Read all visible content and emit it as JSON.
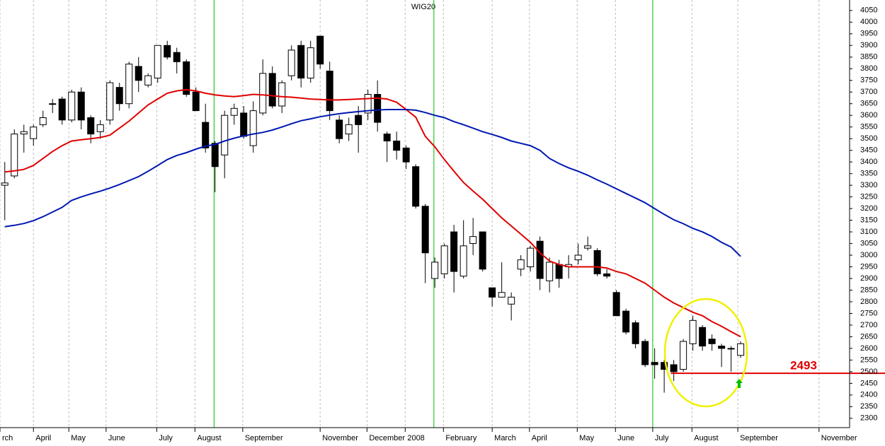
{
  "chart_data": {
    "type": "candlestick",
    "title": "WIG20",
    "open": [
      3300,
      3340,
      3520,
      3500,
      3560,
      3650,
      3670,
      3580,
      3700,
      3590,
      3530,
      3580,
      3720,
      3650,
      3810,
      3730,
      3760,
      3900,
      3870,
      3830,
      3700,
      3570,
      3480,
      3430,
      3600,
      3610,
      3470,
      3610,
      3780,
      3640,
      3770,
      3900,
      3760,
      3940,
      3790,
      3580,
      3520,
      3600,
      3610,
      3690,
      3520,
      3490,
      3460,
      3380,
      3210,
      2900,
      2920,
      3100,
      2910,
      3050,
      3100,
      2860,
      2820,
      2790,
      2940,
      2950,
      3060,
      2890,
      2960,
      2950,
      2980,
      3030,
      3020,
      2920,
      2840,
      2760,
      2710,
      2630,
      2540,
      2540,
      2530,
      2510,
      2620,
      2690,
      2640,
      2610,
      2600,
      2570
    ],
    "high": [
      3400,
      3540,
      3560,
      3560,
      3620,
      3670,
      3680,
      3710,
      3720,
      3600,
      3580,
      3750,
      3740,
      3830,
      3850,
      3780,
      3900,
      3920,
      3890,
      3840,
      3720,
      3650,
      3490,
      3620,
      3650,
      3640,
      3660,
      3840,
      3810,
      3750,
      3900,
      3920,
      3920,
      3940,
      3830,
      3600,
      3590,
      3640,
      3710,
      3750,
      3530,
      3530,
      3470,
      3390,
      3220,
      2990,
      3050,
      3130,
      3150,
      3160,
      3100,
      2860,
      2970,
      2840,
      3000,
      3040,
      3080,
      2990,
      2980,
      3000,
      3050,
      3080,
      3030,
      2940,
      2850,
      2770,
      2720,
      2640,
      2600,
      2550,
      2550,
      2640,
      2740,
      2700,
      2660,
      2620,
      2610,
      2630
    ],
    "low": [
      3150,
      3330,
      3440,
      3470,
      3550,
      3610,
      3560,
      3570,
      3540,
      3480,
      3500,
      3560,
      3620,
      3630,
      3700,
      3720,
      3740,
      3840,
      3780,
      3680,
      3620,
      3440,
      3270,
      3330,
      3560,
      3500,
      3440,
      3600,
      3630,
      3610,
      3750,
      3720,
      3740,
      3800,
      3580,
      3480,
      3490,
      3440,
      3580,
      3530,
      3400,
      3410,
      3370,
      3200,
      2880,
      2860,
      2900,
      2840,
      2900,
      3000,
      2930,
      2780,
      2820,
      2720,
      2910,
      2930,
      2850,
      2840,
      2860,
      2900,
      2960,
      3020,
      2910,
      2900,
      2740,
      2660,
      2600,
      2520,
      2470,
      2410,
      2460,
      2500,
      2590,
      2590,
      2590,
      2520,
      2500,
      2560
    ],
    "close": [
      3310,
      3520,
      3530,
      3550,
      3590,
      3650,
      3580,
      3700,
      3580,
      3520,
      3560,
      3740,
      3650,
      3820,
      3750,
      3770,
      3900,
      3850,
      3830,
      3690,
      3620,
      3460,
      3380,
      3600,
      3630,
      3510,
      3620,
      3780,
      3640,
      3740,
      3880,
      3760,
      3890,
      3820,
      3620,
      3500,
      3560,
      3560,
      3690,
      3570,
      3490,
      3450,
      3400,
      3210,
      3010,
      2970,
      3040,
      2930,
      3040,
      3080,
      2940,
      2820,
      2840,
      2820,
      2980,
      3030,
      2900,
      2970,
      2900,
      2960,
      3000,
      3040,
      2920,
      2910,
      2740,
      2670,
      2620,
      2530,
      2530,
      2510,
      2500,
      2630,
      2720,
      2610,
      2620,
      2600,
      2600,
      2620
    ],
    "overlays": [
      {
        "color": "#e00000",
        "values": [
          3357,
          3362,
          3368,
          3385,
          3415,
          3445,
          3470,
          3490,
          3495,
          3500,
          3505,
          3515,
          3545,
          3575,
          3610,
          3645,
          3670,
          3695,
          3705,
          3710,
          3705,
          3695,
          3688,
          3683,
          3680,
          3685,
          3690,
          3688,
          3684,
          3680,
          3678,
          3674,
          3670,
          3668,
          3666,
          3666,
          3668,
          3670,
          3672,
          3674,
          3670,
          3656,
          3625,
          3592,
          3510,
          3465,
          3410,
          3360,
          3312,
          3275,
          3240,
          3200,
          3160,
          3125,
          3090,
          3055,
          3010,
          2975,
          2960,
          2950,
          2950,
          2950,
          2950,
          2945,
          2930,
          2920,
          2900,
          2880,
          2850,
          2820,
          2795,
          2775,
          2755,
          2740,
          2715,
          2695,
          2672,
          2650
        ]
      },
      {
        "color": "#0018b0",
        "values": [
          3122,
          3128,
          3136,
          3148,
          3165,
          3185,
          3205,
          3235,
          3250,
          3263,
          3275,
          3288,
          3303,
          3320,
          3337,
          3360,
          3385,
          3410,
          3428,
          3440,
          3455,
          3468,
          3475,
          3490,
          3502,
          3512,
          3520,
          3527,
          3537,
          3550,
          3564,
          3577,
          3585,
          3594,
          3601,
          3607,
          3612,
          3616,
          3620,
          3623,
          3625,
          3625,
          3625,
          3622,
          3612,
          3600,
          3590,
          3573,
          3560,
          3545,
          3530,
          3518,
          3505,
          3490,
          3480,
          3470,
          3450,
          3415,
          3393,
          3375,
          3360,
          3343,
          3323,
          3305,
          3285,
          3265,
          3245,
          3225,
          3200,
          3175,
          3152,
          3135,
          3115,
          3100,
          3080,
          3055,
          3035,
          2995
        ]
      }
    ],
    "ylim": [
      2260,
      4095
    ],
    "yticks": [
      2300,
      2350,
      2400,
      2450,
      2500,
      2550,
      2600,
      2650,
      2700,
      2750,
      2800,
      2850,
      2900,
      2950,
      3000,
      3050,
      3100,
      3150,
      3200,
      3250,
      3300,
      3350,
      3400,
      3450,
      3500,
      3550,
      3600,
      3650,
      3700,
      3750,
      3800,
      3850,
      3900,
      3950,
      4000,
      4050
    ],
    "xlim": [
      -0.5,
      88.4
    ],
    "xticks": [
      {
        "value": -0.5,
        "label": "rch"
      },
      {
        "value": 3.0,
        "label": "April"
      },
      {
        "value": 6.7,
        "label": "May"
      },
      {
        "value": 10.6,
        "label": "June"
      },
      {
        "value": 15.9,
        "label": "July"
      },
      {
        "value": 19.9,
        "label": "August"
      },
      {
        "value": 24.9,
        "label": "September"
      },
      {
        "value": 33.0,
        "label": "November"
      },
      {
        "value": 37.9,
        "label": "December"
      },
      {
        "value": 41.9,
        "label": "2008"
      },
      {
        "value": 45.9,
        "label": "February"
      },
      {
        "value": 51.0,
        "label": "March"
      },
      {
        "value": 54.9,
        "label": "April"
      },
      {
        "value": 59.9,
        "label": "May"
      },
      {
        "value": 63.9,
        "label": "June"
      },
      {
        "value": 67.8,
        "label": "July"
      },
      {
        "value": 71.9,
        "label": "August"
      },
      {
        "value": 76.7,
        "label": "September"
      },
      {
        "value": 85.2,
        "label": "November"
      }
    ],
    "vlines": [
      21.9,
      44.9,
      67.8
    ],
    "level": {
      "value": 2493,
      "label": "2493",
      "start": 69.7
    },
    "grid": true
  }
}
